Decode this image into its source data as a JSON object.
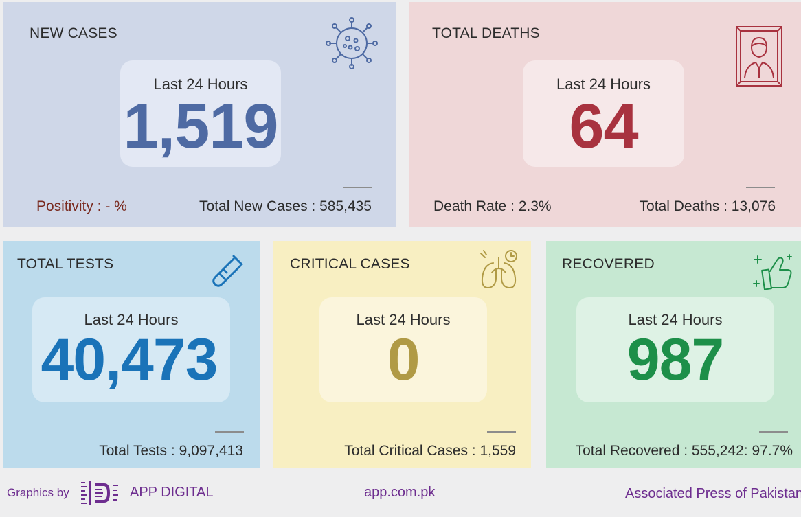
{
  "cards": {
    "new_cases": {
      "title": "NEW CASES",
      "period_label": "Last 24 Hours",
      "value": "1,519",
      "left_stat": "Positivity : - %",
      "right_stat": "Total New Cases : 585,435",
      "bg_color": "#cfd7e8",
      "value_color": "#4e6aa3",
      "icon": "virus-icon"
    },
    "total_deaths": {
      "title": "TOTAL DEATHS",
      "period_label": "Last 24 Hours",
      "value": "64",
      "left_stat": "Death Rate : 2.3%",
      "right_stat": "Total Deaths : 13,076",
      "bg_color": "#efd7d8",
      "value_color": "#a8323f",
      "icon": "memorial-portrait-icon"
    },
    "total_tests": {
      "title": "TOTAL TESTS",
      "period_label": "Last 24 Hours",
      "value": "40,473",
      "right_stat": "Total Tests : 9,097,413",
      "bg_color": "#bcdbec",
      "value_color": "#1a73b8",
      "icon": "test-tube-icon"
    },
    "critical_cases": {
      "title": "CRITICAL CASES",
      "period_label": "Last 24 Hours",
      "value": "0",
      "right_stat": "Total Critical Cases : 1,559",
      "bg_color": "#f8efc2",
      "value_color": "#b09a45",
      "icon": "lungs-icon"
    },
    "recovered": {
      "title": "RECOVERED",
      "period_label": "Last 24 Hours",
      "value": "987",
      "right_stat": "Total Recovered : 555,242: 97.7%",
      "bg_color": "#c6e8d2",
      "value_color": "#1d8f49",
      "icon": "thumbs-up-icon"
    }
  },
  "footer": {
    "graphics_by": "Graphics by",
    "brand": "APP DIGITAL",
    "website": "app.com.pk",
    "agency": "Associated Press of Pakistan"
  }
}
